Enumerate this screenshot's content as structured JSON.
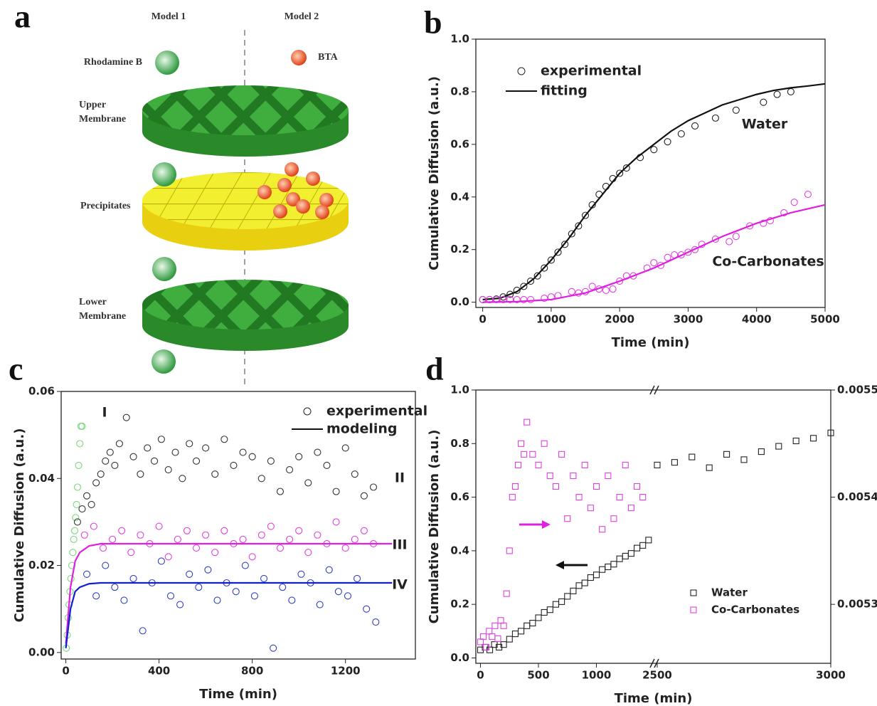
{
  "panel_labels": [
    "a",
    "b",
    "c",
    "d"
  ],
  "diagram": {
    "columns": [
      "Model 1",
      "Model 2"
    ],
    "particles": [
      "Rhodamine B",
      "BTA"
    ],
    "layers": [
      [
        "Upper",
        "Membrane"
      ],
      [
        "Precipitates"
      ],
      [
        "Lower",
        "Membrane"
      ]
    ]
  },
  "chart_data": [
    {
      "type": "scatter",
      "xlabel": "Time (min)",
      "ylabel": "Cumulative Diffusion  (a.u.)",
      "xlim": [
        -100,
        5000
      ],
      "ylim": [
        -0.02,
        1.0
      ],
      "xticks": [
        0,
        1000,
        2000,
        3000,
        4000,
        5000
      ],
      "yticks": [
        {
          "value": 0,
          "label": "0.0"
        },
        0.2,
        0.4,
        0.6,
        0.8,
        {
          "value": 1,
          "label": "1.0"
        }
      ],
      "legend": [
        {
          "label": "experimental",
          "style": "markers"
        },
        {
          "label": "fitting",
          "style": "line"
        }
      ],
      "annotations": [
        "Water",
        "Co-Carbonates"
      ],
      "series": [
        {
          "style": "markers",
          "marker": "circle",
          "color": "#222222",
          "x": [
            0,
            100,
            200,
            300,
            400,
            500,
            600,
            700,
            800,
            900,
            1000,
            1100,
            1200,
            1300,
            1400,
            1500,
            1600,
            1700,
            1800,
            1900,
            2000,
            2100,
            2300,
            2500,
            2700,
            2900,
            3100,
            3400,
            3700,
            4100,
            4300,
            4500
          ],
          "values": [
            0.01,
            0.01,
            0.012,
            0.02,
            0.03,
            0.045,
            0.06,
            0.08,
            0.1,
            0.13,
            0.16,
            0.19,
            0.22,
            0.26,
            0.29,
            0.33,
            0.37,
            0.41,
            0.44,
            0.47,
            0.49,
            0.51,
            0.55,
            0.58,
            0.61,
            0.64,
            0.67,
            0.7,
            0.73,
            0.76,
            0.79,
            0.8
          ]
        },
        {
          "style": "line",
          "color": "#111111",
          "x": [
            0,
            250,
            500,
            750,
            1000,
            1250,
            1500,
            1750,
            2000,
            2250,
            2500,
            2750,
            3000,
            3250,
            3500,
            3750,
            4000,
            4250,
            4500,
            4750,
            5000
          ],
          "values": [
            0.01,
            0.015,
            0.04,
            0.09,
            0.16,
            0.24,
            0.33,
            0.41,
            0.49,
            0.55,
            0.6,
            0.65,
            0.69,
            0.72,
            0.75,
            0.77,
            0.79,
            0.805,
            0.815,
            0.822,
            0.83
          ]
        },
        {
          "style": "markers",
          "marker": "circle",
          "color": "#e040e0",
          "x": [
            0,
            100,
            200,
            300,
            400,
            500,
            600,
            700,
            900,
            1000,
            1100,
            1300,
            1400,
            1500,
            1600,
            1700,
            1800,
            1900,
            2000,
            2100,
            2200,
            2400,
            2500,
            2600,
            2700,
            2800,
            2900,
            3000,
            3100,
            3200,
            3400,
            3600,
            3700,
            3900,
            4100,
            4200,
            4400,
            4550,
            4750
          ],
          "values": [
            0.01,
            0.01,
            0.01,
            0.01,
            0.01,
            0.01,
            0.01,
            0.01,
            0.015,
            0.02,
            0.025,
            0.04,
            0.035,
            0.04,
            0.06,
            0.05,
            0.045,
            0.05,
            0.08,
            0.1,
            0.1,
            0.13,
            0.15,
            0.14,
            0.17,
            0.18,
            0.18,
            0.19,
            0.2,
            0.22,
            0.24,
            0.23,
            0.25,
            0.29,
            0.3,
            0.31,
            0.34,
            0.38,
            0.41
          ]
        },
        {
          "style": "line",
          "color": "#e020e0",
          "x": [
            0,
            500,
            1000,
            1500,
            2000,
            2500,
            3000,
            3500,
            4000,
            4500,
            5000
          ],
          "values": [
            0.0,
            0.002,
            0.01,
            0.035,
            0.08,
            0.13,
            0.19,
            0.25,
            0.3,
            0.34,
            0.37
          ]
        }
      ]
    },
    {
      "type": "scatter",
      "xlabel": "Time (min)",
      "ylabel": "Cumulative Diffusion  (a.u.)",
      "xlim": [
        -20,
        1500
      ],
      "ylim": [
        -0.0015,
        0.06
      ],
      "xticks": [
        0,
        400,
        800,
        1200
      ],
      "yticks": [
        {
          "value": 0,
          "label": "0.00"
        },
        0.02,
        0.04,
        0.06
      ],
      "legend": [
        {
          "label": "experimental",
          "style": "markers"
        },
        {
          "label": "modeling",
          "style": "line"
        }
      ],
      "annotations": [
        "I",
        "II",
        "III",
        "IV"
      ],
      "series": [
        {
          "style": "markers",
          "marker": "circle",
          "color": "#7bd87b",
          "x": [
            2,
            6,
            10,
            14,
            18,
            22,
            26,
            30,
            34,
            38,
            42,
            46,
            50,
            55,
            60,
            65,
            70
          ],
          "values": [
            0.001,
            0.004,
            0.008,
            0.011,
            0.014,
            0.017,
            0.02,
            0.023,
            0.026,
            0.028,
            0.031,
            0.034,
            0.038,
            0.043,
            0.048,
            0.052,
            0.052
          ]
        },
        {
          "style": "markers",
          "marker": "circle",
          "color": "#333333",
          "x": [
            50,
            70,
            90,
            110,
            130,
            150,
            170,
            190,
            210,
            230,
            260,
            290,
            320,
            350,
            380,
            410,
            440,
            470,
            500,
            530,
            560,
            600,
            640,
            680,
            720,
            760,
            800,
            840,
            880,
            920,
            960,
            1000,
            1040,
            1080,
            1120,
            1160,
            1200,
            1240,
            1280,
            1320
          ],
          "values": [
            0.03,
            0.033,
            0.036,
            0.034,
            0.039,
            0.041,
            0.044,
            0.046,
            0.043,
            0.048,
            0.054,
            0.045,
            0.041,
            0.047,
            0.044,
            0.049,
            0.042,
            0.046,
            0.04,
            0.048,
            0.044,
            0.047,
            0.041,
            0.049,
            0.043,
            0.046,
            0.045,
            0.04,
            0.044,
            0.037,
            0.042,
            0.045,
            0.039,
            0.046,
            0.043,
            0.037,
            0.047,
            0.041,
            0.036,
            0.038
          ]
        },
        {
          "style": "markers",
          "marker": "circle",
          "color": "#e040e0",
          "x": [
            80,
            120,
            160,
            200,
            240,
            280,
            320,
            360,
            400,
            440,
            480,
            520,
            560,
            600,
            640,
            680,
            720,
            760,
            800,
            840,
            880,
            920,
            960,
            1000,
            1040,
            1080,
            1120,
            1160,
            1200,
            1240,
            1280,
            1320
          ],
          "values": [
            0.027,
            0.029,
            0.024,
            0.026,
            0.028,
            0.023,
            0.027,
            0.025,
            0.029,
            0.022,
            0.026,
            0.028,
            0.024,
            0.027,
            0.023,
            0.028,
            0.025,
            0.026,
            0.022,
            0.027,
            0.029,
            0.024,
            0.026,
            0.028,
            0.023,
            0.027,
            0.025,
            0.03,
            0.024,
            0.026,
            0.028,
            0.025
          ]
        },
        {
          "style": "markers",
          "marker": "circle",
          "color": "#3040c0",
          "x": [
            90,
            130,
            170,
            210,
            250,
            290,
            330,
            370,
            410,
            450,
            490,
            530,
            570,
            610,
            650,
            690,
            730,
            770,
            810,
            850,
            890,
            930,
            970,
            1010,
            1050,
            1090,
            1130,
            1170,
            1210,
            1250,
            1290,
            1330
          ],
          "values": [
            0.018,
            0.013,
            0.02,
            0.015,
            0.012,
            0.017,
            0.005,
            0.016,
            0.021,
            0.013,
            0.011,
            0.018,
            0.015,
            0.019,
            0.012,
            0.016,
            0.014,
            0.02,
            0.013,
            0.017,
            0.001,
            0.015,
            0.012,
            0.018,
            0.016,
            0.011,
            0.019,
            0.014,
            0.013,
            0.017,
            0.01,
            0.007
          ]
        },
        {
          "style": "line",
          "color": "#e020e0",
          "x": [
            0,
            20,
            40,
            60,
            100,
            150,
            1400
          ],
          "values": [
            0.002,
            0.015,
            0.021,
            0.023,
            0.0245,
            0.025,
            0.025
          ]
        },
        {
          "style": "line",
          "color": "#1020d0",
          "x": [
            0,
            20,
            40,
            60,
            100,
            150,
            1400
          ],
          "values": [
            0.001,
            0.01,
            0.014,
            0.015,
            0.0158,
            0.016,
            0.016
          ]
        }
      ]
    },
    {
      "type": "scatter",
      "xlabel": "Time (min)",
      "ylabel": "Cumulative Diffusion  (a.u.)",
      "x_segments": [
        [
          -40,
          1500
        ],
        [
          2500,
          3000
        ]
      ],
      "ylim": [
        -0.02,
        1.0
      ],
      "y2lim": [
        0.005245,
        0.0055
      ],
      "xticks": [
        0,
        500,
        1000,
        2500,
        3000
      ],
      "yticks": [
        {
          "value": 0,
          "label": "0.0"
        },
        0.2,
        0.4,
        0.6,
        0.8,
        {
          "value": 1,
          "label": "1.0"
        }
      ],
      "y2ticks": [
        0.0053,
        0.0054,
        0.0055
      ],
      "series": [
        {
          "name": "Water",
          "style": "markers",
          "marker": "square",
          "color": "#222222",
          "x": [
            0,
            40,
            80,
            120,
            160,
            200,
            250,
            300,
            350,
            400,
            450,
            500,
            550,
            600,
            650,
            700,
            750,
            800,
            850,
            900,
            950,
            1000,
            1050,
            1100,
            1150,
            1200,
            1250,
            1300,
            1350,
            1400,
            1450,
            2500,
            2550,
            2600,
            2650,
            2700,
            2750,
            2800,
            2850,
            2900,
            2950,
            3000
          ],
          "values": [
            0.03,
            0.04,
            0.03,
            0.05,
            0.04,
            0.05,
            0.07,
            0.09,
            0.1,
            0.12,
            0.13,
            0.15,
            0.17,
            0.18,
            0.2,
            0.21,
            0.23,
            0.25,
            0.27,
            0.28,
            0.3,
            0.31,
            0.33,
            0.34,
            0.35,
            0.37,
            0.38,
            0.39,
            0.41,
            0.42,
            0.44,
            0.72,
            0.73,
            0.75,
            0.71,
            0.76,
            0.74,
            0.77,
            0.79,
            0.81,
            0.82,
            0.84
          ]
        },
        {
          "name": "Co-Carbonates",
          "style": "markers",
          "marker": "square",
          "color": "#e040e0",
          "axis": "y2",
          "x": [
            0,
            25,
            50,
            75,
            100,
            125,
            150,
            175,
            200,
            225,
            250,
            275,
            300,
            325,
            350,
            375,
            400,
            450,
            500,
            550,
            600,
            650,
            700,
            750,
            800,
            850,
            900,
            950,
            1000,
            1050,
            1100,
            1150,
            1200,
            1250,
            1300,
            1350,
            1400
          ],
          "values": [
            0.005265,
            0.00527,
            0.00526,
            0.005275,
            0.00527,
            0.00528,
            0.005268,
            0.005285,
            0.00528,
            0.00531,
            0.00535,
            0.0054,
            0.00541,
            0.00543,
            0.00545,
            0.00544,
            0.00547,
            0.00544,
            0.00543,
            0.00545,
            0.00542,
            0.00541,
            0.00544,
            0.00538,
            0.00542,
            0.0054,
            0.00543,
            0.00539,
            0.00541,
            0.00537,
            0.00542,
            0.00538,
            0.0054,
            0.00543,
            0.00539,
            0.00541,
            0.0054
          ]
        }
      ]
    }
  ]
}
